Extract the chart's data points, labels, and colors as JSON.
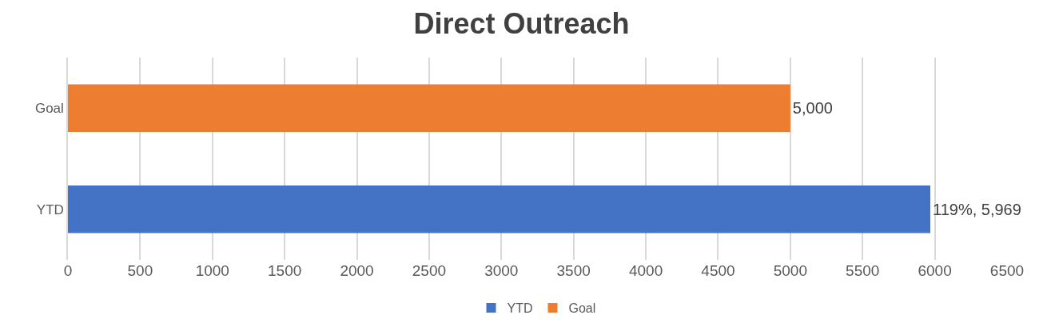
{
  "chart_data": {
    "type": "bar",
    "orientation": "horizontal",
    "title": "Direct Outreach",
    "categories": [
      "Goal",
      "YTD"
    ],
    "series": [
      {
        "name": "YTD",
        "color": "#4472c4",
        "values": [
          null,
          5969
        ],
        "value_labels": [
          null,
          "119%, 5,969"
        ]
      },
      {
        "name": "Goal",
        "color": "#ed7d31",
        "values": [
          5000,
          null
        ],
        "value_labels": [
          "5,000",
          null
        ]
      }
    ],
    "xlim": [
      0,
      6500
    ],
    "xticks": [
      0,
      500,
      1000,
      1500,
      2000,
      2500,
      3000,
      3500,
      4000,
      4500,
      5000,
      5500,
      6000,
      6500
    ],
    "grid": "x",
    "legend": "bottom"
  }
}
